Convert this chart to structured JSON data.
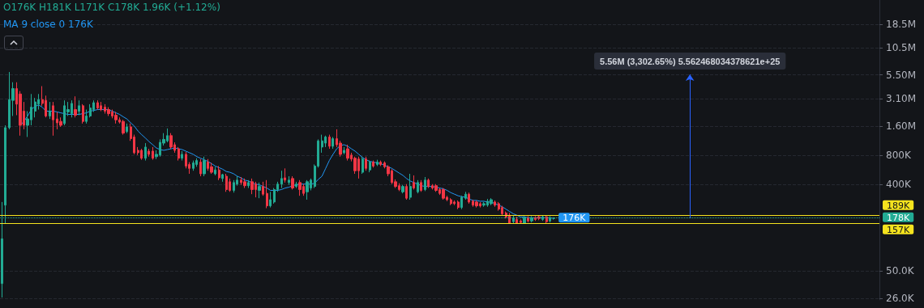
{
  "chart_data": {
    "type": "candlestick",
    "categories": [
      null,
      null,
      null,
      null,
      null,
      null,
      null,
      null,
      null,
      null,
      null,
      null,
      null,
      null,
      null,
      null,
      null,
      null,
      null,
      null,
      null,
      null,
      null,
      null,
      null,
      null,
      null,
      null,
      null,
      null,
      null,
      null,
      null,
      null,
      null,
      null,
      null,
      null,
      null,
      null,
      null,
      null,
      null,
      null,
      null,
      null,
      null,
      null,
      null,
      null,
      null,
      null,
      null,
      null,
      null,
      null,
      null,
      null,
      null,
      null,
      null,
      null,
      null,
      null,
      null,
      null,
      null,
      null,
      null,
      null,
      null,
      null,
      null,
      null,
      null,
      null,
      null,
      null,
      null,
      null,
      null,
      null,
      null,
      null,
      null,
      null,
      null,
      null,
      null,
      null,
      null,
      null,
      null,
      null,
      null,
      null,
      null,
      null,
      null,
      null,
      null,
      null,
      null,
      null,
      null,
      null,
      null,
      null,
      null,
      null,
      null,
      null,
      null,
      null,
      null,
      null,
      null,
      null,
      null,
      null,
      null,
      null,
      null,
      null,
      null,
      null,
      null,
      null,
      null,
      null,
      null,
      null,
      null,
      null,
      null,
      null,
      null,
      null,
      null,
      null,
      null,
      null,
      null,
      null,
      null,
      null,
      null,
      null,
      null,
      null,
      null
    ],
    "ohlc": [
      [
        37000,
        261000,
        26500,
        108000
      ],
      [
        242000,
        1640000,
        157000,
        1550000
      ],
      [
        1550000,
        5880000,
        1490000,
        3040000
      ],
      [
        2980000,
        4600000,
        2050000,
        3950000
      ],
      [
        3950000,
        4600000,
        2090000,
        2720000
      ],
      [
        3470000,
        3720000,
        1280000,
        1640000
      ],
      [
        2300000,
        2870000,
        1490000,
        1640000
      ],
      [
        1640000,
        2300000,
        1240000,
        1910000
      ],
      [
        1870000,
        3470000,
        1640000,
        2530000
      ],
      [
        2300000,
        3160000,
        1980000,
        2870000
      ],
      [
        2720000,
        3470000,
        2390000,
        3040000
      ],
      [
        3040000,
        4190000,
        2620000,
        2770000
      ],
      [
        2980000,
        3340000,
        1980000,
        2050000
      ],
      [
        2050000,
        2870000,
        1910000,
        2300000
      ],
      [
        2620000,
        2870000,
        1280000,
        1870000
      ],
      [
        1910000,
        2260000,
        1490000,
        1740000
      ],
      [
        1800000,
        1980000,
        1580000,
        1640000
      ],
      [
        1710000,
        2980000,
        1640000,
        2620000
      ],
      [
        2260000,
        2870000,
        2050000,
        2390000
      ],
      [
        2170000,
        2980000,
        1980000,
        2770000
      ],
      [
        2390000,
        3280000,
        1980000,
        2090000
      ],
      [
        2300000,
        2980000,
        2090000,
        2620000
      ],
      [
        2620000,
        2720000,
        1710000,
        1800000
      ],
      [
        1800000,
        2390000,
        1710000,
        2050000
      ],
      [
        2050000,
        2720000,
        1980000,
        2480000
      ],
      [
        2390000,
        2980000,
        2260000,
        2820000
      ],
      [
        2820000,
        2980000,
        2390000,
        2480000
      ],
      [
        2620000,
        2870000,
        2300000,
        2390000
      ],
      [
        2530000,
        2720000,
        2170000,
        2300000
      ],
      [
        2390000,
        2530000,
        2050000,
        2170000
      ],
      [
        2260000,
        2390000,
        1940000,
        2050000
      ],
      [
        2090000,
        2260000,
        1710000,
        1870000
      ],
      [
        1870000,
        1980000,
        1710000,
        1770000
      ],
      [
        1800000,
        1870000,
        1310000,
        1360000
      ],
      [
        1410000,
        1710000,
        1360000,
        1580000
      ],
      [
        1580000,
        1710000,
        1130000,
        1190000
      ],
      [
        1240000,
        1310000,
        818000,
        850000
      ],
      [
        900000,
        974000,
        803000,
        850000
      ],
      [
        900000,
        934000,
        718000,
        745000
      ],
      [
        745000,
        1070000,
        705000,
        974000
      ],
      [
        883000,
        934000,
        774000,
        818000
      ],
      [
        883000,
        974000,
        718000,
        745000
      ],
      [
        774000,
        900000,
        731000,
        818000
      ],
      [
        803000,
        1170000,
        774000,
        1090000
      ],
      [
        1070000,
        1360000,
        1010000,
        1170000
      ],
      [
        1130000,
        1520000,
        1090000,
        1280000
      ],
      [
        1280000,
        1360000,
        934000,
        974000
      ],
      [
        1030000,
        1090000,
        850000,
        900000
      ],
      [
        934000,
        974000,
        705000,
        745000
      ],
      [
        745000,
        883000,
        705000,
        818000
      ],
      [
        818000,
        866000,
        584000,
        618000
      ],
      [
        642000,
        679000,
        513000,
        584000
      ],
      [
        584000,
        705000,
        552000,
        666000
      ],
      [
        642000,
        745000,
        607000,
        705000
      ],
      [
        679000,
        731000,
        484000,
        513000
      ],
      [
        513000,
        774000,
        484000,
        705000
      ],
      [
        679000,
        731000,
        552000,
        584000
      ],
      [
        607000,
        666000,
        513000,
        532000
      ],
      [
        513000,
        607000,
        494000,
        563000
      ],
      [
        563000,
        618000,
        441000,
        466000
      ],
      [
        458000,
        513000,
        424000,
        503000
      ],
      [
        484000,
        513000,
        333000,
        352000
      ],
      [
        424000,
        458000,
        333000,
        345000
      ],
      [
        345000,
        441000,
        327000,
        416000
      ],
      [
        401000,
        484000,
        386000,
        441000
      ],
      [
        441000,
        475000,
        394000,
        416000
      ],
      [
        424000,
        458000,
        365000,
        386000
      ],
      [
        386000,
        441000,
        365000,
        416000
      ],
      [
        424000,
        458000,
        315000,
        352000
      ],
      [
        401000,
        424000,
        292000,
        352000
      ],
      [
        345000,
        416000,
        286000,
        379000
      ],
      [
        379000,
        424000,
        303000,
        315000
      ],
      [
        321000,
        441000,
        225000,
        238000
      ],
      [
        238000,
        333000,
        229000,
        276000
      ],
      [
        261000,
        365000,
        251000,
        352000
      ],
      [
        352000,
        424000,
        333000,
        401000
      ],
      [
        401000,
        552000,
        365000,
        458000
      ],
      [
        466000,
        584000,
        416000,
        441000
      ],
      [
        416000,
        484000,
        394000,
        441000
      ],
      [
        458000,
        484000,
        352000,
        365000
      ],
      [
        379000,
        424000,
        365000,
        401000
      ],
      [
        416000,
        441000,
        303000,
        352000
      ],
      [
        379000,
        401000,
        303000,
        321000
      ],
      [
        333000,
        441000,
        276000,
        424000
      ],
      [
        365000,
        458000,
        345000,
        441000
      ],
      [
        379000,
        642000,
        365000,
        618000
      ],
      [
        618000,
        1170000,
        595000,
        1130000
      ],
      [
        974000,
        1310000,
        850000,
        1130000
      ],
      [
        1070000,
        1280000,
        974000,
        1240000
      ],
      [
        1240000,
        1310000,
        934000,
        993000
      ],
      [
        993000,
        1240000,
        934000,
        1190000
      ],
      [
        1190000,
        1490000,
        974000,
        1030000
      ],
      [
        1070000,
        1130000,
        774000,
        818000
      ],
      [
        850000,
        974000,
        818000,
        900000
      ],
      [
        934000,
        1030000,
        705000,
        745000
      ],
      [
        803000,
        850000,
        691000,
        731000
      ],
      [
        745000,
        774000,
        513000,
        552000
      ],
      [
        731000,
        774000,
        458000,
        552000
      ],
      [
        532000,
        774000,
        513000,
        731000
      ],
      [
        731000,
        774000,
        552000,
        584000
      ],
      [
        563000,
        705000,
        532000,
        679000
      ],
      [
        679000,
        705000,
        595000,
        618000
      ],
      [
        642000,
        718000,
        618000,
        679000
      ],
      [
        679000,
        705000,
        618000,
        642000
      ],
      [
        666000,
        691000,
        584000,
        607000
      ],
      [
        607000,
        630000,
        484000,
        513000
      ],
      [
        552000,
        573000,
        401000,
        416000
      ],
      [
        424000,
        449000,
        365000,
        379000
      ],
      [
        386000,
        409000,
        339000,
        352000
      ],
      [
        333000,
        394000,
        321000,
        379000
      ],
      [
        379000,
        401000,
        276000,
        286000
      ],
      [
        292000,
        513000,
        276000,
        379000
      ],
      [
        416000,
        494000,
        352000,
        365000
      ],
      [
        333000,
        441000,
        321000,
        416000
      ],
      [
        416000,
        441000,
        333000,
        345000
      ],
      [
        352000,
        475000,
        339000,
        441000
      ],
      [
        441000,
        458000,
        365000,
        379000
      ],
      [
        386000,
        401000,
        352000,
        365000
      ],
      [
        386000,
        401000,
        333000,
        345000
      ],
      [
        352000,
        365000,
        309000,
        321000
      ],
      [
        352000,
        365000,
        276000,
        286000
      ],
      [
        292000,
        303000,
        266000,
        276000
      ],
      [
        276000,
        286000,
        242000,
        251000
      ],
      [
        261000,
        271000,
        242000,
        251000
      ],
      [
        261000,
        271000,
        220000,
        229000
      ],
      [
        229000,
        303000,
        220000,
        292000
      ],
      [
        286000,
        333000,
        276000,
        315000
      ],
      [
        315000,
        327000,
        251000,
        261000
      ],
      [
        266000,
        276000,
        233000,
        242000
      ],
      [
        261000,
        271000,
        229000,
        238000
      ],
      [
        251000,
        261000,
        229000,
        238000
      ],
      [
        242000,
        261000,
        233000,
        251000
      ],
      [
        242000,
        281000,
        233000,
        266000
      ],
      [
        251000,
        286000,
        242000,
        276000
      ],
      [
        261000,
        271000,
        233000,
        242000
      ],
      [
        251000,
        261000,
        212000,
        220000
      ],
      [
        229000,
        238000,
        190000,
        197000
      ],
      [
        201000,
        208000,
        176000,
        183000
      ],
      [
        190000,
        201000,
        157000,
        157000
      ],
      [
        163000,
        190000,
        157000,
        179000
      ],
      [
        172000,
        183000,
        157000,
        157000
      ],
      [
        166000,
        172000,
        157000,
        160000
      ],
      [
        157000,
        186000,
        157000,
        179000
      ],
      [
        179000,
        186000,
        160000,
        166000
      ],
      [
        166000,
        186000,
        160000,
        179000
      ],
      [
        179000,
        186000,
        166000,
        172000
      ],
      [
        183000,
        190000,
        169000,
        176000
      ],
      [
        172000,
        190000,
        166000,
        183000
      ],
      [
        183000,
        190000,
        157000,
        163000
      ],
      [
        166000,
        186000,
        160000,
        179000
      ],
      [
        176000,
        181000,
        171000,
        178000
      ]
    ],
    "colors": [
      "#22ab94",
      "#22ab94",
      "#22ab94",
      "#22ab94",
      "#f23645",
      "#f23645",
      "#f23645",
      "#22ab94",
      "#22ab94",
      "#22ab94",
      "#22ab94",
      "#f23645",
      "#f23645",
      "#22ab94",
      "#f23645",
      "#f23645",
      "#f23645",
      "#22ab94",
      "#22ab94",
      "#22ab94",
      "#f23645",
      "#22ab94",
      "#f23645",
      "#22ab94",
      "#22ab94",
      "#22ab94",
      "#f23645",
      "#f23645",
      "#f23645",
      "#f23645",
      "#f23645",
      "#f23645",
      "#f23645",
      "#f23645",
      "#22ab94",
      "#f23645",
      "#f23645",
      "#f23645",
      "#f23645",
      "#22ab94",
      "#f23645",
      "#f23645",
      "#22ab94",
      "#22ab94",
      "#22ab94",
      "#22ab94",
      "#f23645",
      "#f23645",
      "#f23645",
      "#22ab94",
      "#f23645",
      "#f23645",
      "#22ab94",
      "#22ab94",
      "#f23645",
      "#22ab94",
      "#f23645",
      "#f23645",
      "#22ab94",
      "#f23645",
      "#22ab94",
      "#f23645",
      "#f23645",
      "#22ab94",
      "#22ab94",
      "#f23645",
      "#f23645",
      "#22ab94",
      "#f23645",
      "#f23645",
      "#22ab94",
      "#f23645",
      "#f23645",
      "#22ab94",
      "#22ab94",
      "#22ab94",
      "#22ab94",
      "#f23645",
      "#22ab94",
      "#f23645",
      "#22ab94",
      "#f23645",
      "#f23645",
      "#22ab94",
      "#22ab94",
      "#22ab94",
      "#22ab94",
      "#22ab94",
      "#22ab94",
      "#f23645",
      "#22ab94",
      "#f23645",
      "#f23645",
      "#22ab94",
      "#f23645",
      "#f23645",
      "#f23645",
      "#f23645",
      "#22ab94",
      "#f23645",
      "#22ab94",
      "#f23645",
      "#22ab94",
      "#f23645",
      "#f23645",
      "#f23645",
      "#f23645",
      "#f23645",
      "#f23645",
      "#22ab94",
      "#f23645",
      "#22ab94",
      "#f23645",
      "#22ab94",
      "#f23645",
      "#22ab94",
      "#f23645",
      "#f23645",
      "#f23645",
      "#f23645",
      "#f23645",
      "#f23645",
      "#f23645",
      "#f23645",
      "#f23645",
      "#22ab94",
      "#22ab94",
      "#f23645",
      "#f23645",
      "#f23645",
      "#f23645",
      "#22ab94",
      "#22ab94",
      "#22ab94",
      "#f23645",
      "#f23645",
      "#f23645",
      "#f23645",
      "#f23645",
      "#22ab94",
      "#f23645",
      "#f23645",
      "#22ab94",
      "#f23645",
      "#22ab94",
      "#f23645",
      "#f23645",
      "#22ab94",
      "#f23645",
      "#22ab94",
      "#22ab94"
    ],
    "series": [
      {
        "type": "line",
        "name": "MA 9 close 0",
        "color": "#2196f3",
        "values": [
          null,
          null,
          null,
          null,
          null,
          1640000,
          1800000,
          2050000,
          2390000,
          2570000,
          2670000,
          2530000,
          2300000,
          2300000,
          2300000,
          2260000,
          2210000,
          2170000,
          2130000,
          2130000,
          2130000,
          2130000,
          2170000,
          2210000,
          2300000,
          2340000,
          2390000,
          2390000,
          2390000,
          2390000,
          2300000,
          2210000,
          2130000,
          2010000,
          1910000,
          1740000,
          1610000,
          1430000,
          1310000,
          1210000,
          1110000,
          1030000,
          952000,
          917000,
          900000,
          917000,
          934000,
          952000,
          934000,
          917000,
          883000,
          850000,
          818000,
          774000,
          745000,
          718000,
          691000,
          654000,
          618000,
          595000,
          573000,
          542000,
          532000,
          513000,
          484000,
          466000,
          441000,
          432000,
          416000,
          401000,
          394000,
          379000,
          365000,
          345000,
          345000,
          345000,
          352000,
          365000,
          372000,
          386000,
          394000,
          401000,
          401000,
          401000,
          401000,
          409000,
          449000,
          484000,
          584000,
          705000,
          818000,
          934000,
          1010000,
          1030000,
          993000,
          934000,
          883000,
          818000,
          760000,
          718000,
          691000,
          679000,
          666000,
          654000,
          630000,
          607000,
          584000,
          552000,
          522000,
          494000,
          458000,
          432000,
          416000,
          401000,
          386000,
          379000,
          379000,
          379000,
          372000,
          365000,
          358000,
          345000,
          327000,
          315000,
          303000,
          297000,
          292000,
          281000,
          271000,
          271000,
          266000,
          266000,
          261000,
          261000,
          251000,
          242000,
          233000,
          220000,
          208000,
          197000,
          190000,
          183000,
          183000,
          179000,
          179000,
          179000,
          179000,
          179000,
          179000,
          179000,
          176000
        ],
        "value_labels": [
          null,
          null,
          null,
          null,
          null,
          null,
          null,
          null,
          null,
          null,
          null,
          null,
          null,
          null,
          null,
          null,
          null,
          null,
          null,
          null,
          null,
          null,
          null,
          null,
          null,
          null,
          null,
          null,
          null,
          null,
          null,
          null,
          null,
          null,
          null,
          null,
          null,
          null,
          null,
          null,
          null,
          null,
          null,
          null,
          null,
          null,
          null,
          null,
          null,
          null,
          null,
          null,
          null,
          null,
          null,
          null,
          null,
          null,
          null,
          null,
          null,
          null,
          null,
          null,
          null,
          null,
          null,
          null,
          null,
          null,
          null,
          null,
          null,
          null,
          null,
          null,
          null,
          null,
          null,
          null,
          null,
          null,
          null,
          null,
          null,
          null,
          null,
          null,
          null,
          null,
          null,
          null,
          null,
          null,
          null,
          null,
          null,
          null,
          null,
          null,
          null,
          null,
          null,
          null,
          null,
          null,
          null,
          null,
          null,
          null,
          null,
          null,
          null,
          null,
          null,
          null,
          null,
          null,
          null,
          null,
          null,
          null,
          null,
          null,
          null,
          null,
          null,
          null,
          null,
          null,
          null,
          null,
          null,
          null,
          null,
          null,
          null,
          null,
          null,
          null,
          null,
          null,
          null,
          null,
          null,
          null,
          null,
          null,
          null,
          null,
          "176K"
        ]
      }
    ],
    "log": true,
    "ylim": [
      25000,
      33000000
    ],
    "yticks": [
      {
        "value": 26000,
        "label": "26.0K"
      },
      {
        "value": 50000,
        "label": "50.0K"
      },
      {
        "value": 400000,
        "label": "400K"
      },
      {
        "value": 800000,
        "label": "800K"
      },
      {
        "value": 1600000,
        "label": "1.60M"
      },
      {
        "value": 3100000,
        "label": "3.10M"
      },
      {
        "value": 5500000,
        "label": "5.50M"
      },
      {
        "value": 10500000,
        "label": "10.5M"
      },
      {
        "value": 18500000,
        "label": "18.5M"
      }
    ],
    "grid": "y",
    "tick_labels": "y",
    "marker": "none",
    "ref_lines": [
      {
        "axis": "y",
        "value": 189000,
        "label": "189K",
        "color": "#f5e31e"
      },
      {
        "axis": "y",
        "value": 178000,
        "label": "178K",
        "color": "#22ab94",
        "line_style": "dotted"
      },
      {
        "axis": "y",
        "value": 157000,
        "label": "157K",
        "color": "#f5e31e"
      }
    ],
    "annotations": [
      "O176K H181K L171K C178K 1.96K (+1.12%)",
      "5.56M (3,302.65%) 5.562468034378621e+25"
    ]
  }
}
